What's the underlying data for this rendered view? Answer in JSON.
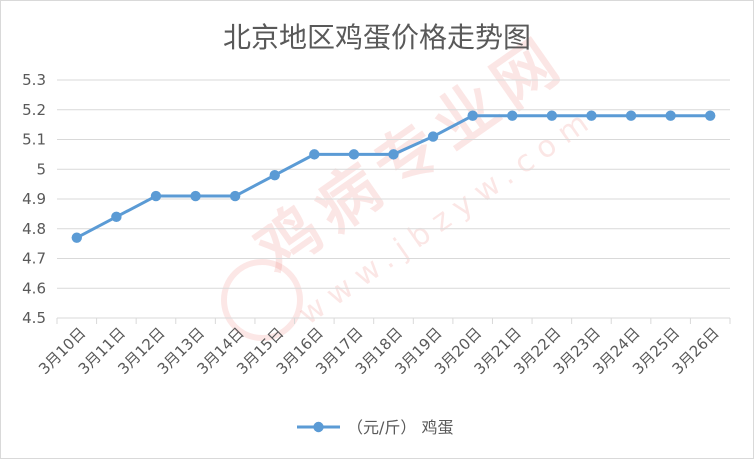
{
  "chart_data": {
    "type": "line",
    "title": "北京地区鸡蛋价格走势图",
    "categories": [
      "3月10日",
      "3月11日",
      "3月12日",
      "3月13日",
      "3月14日",
      "3月15日",
      "3月16日",
      "3月17日",
      "3月18日",
      "3月19日",
      "3月20日",
      "3月21日",
      "3月22日",
      "3月23日",
      "3月24日",
      "3月25日",
      "3月26日"
    ],
    "series": [
      {
        "name": "（元/斤） 鸡蛋",
        "color": "#5B9BD5",
        "values": [
          4.77,
          4.84,
          4.91,
          4.91,
          4.91,
          4.98,
          5.05,
          5.05,
          5.05,
          5.11,
          5.18,
          5.18,
          5.18,
          5.18,
          5.18,
          5.18,
          5.18
        ]
      }
    ],
    "ylim": [
      4.5,
      5.3
    ],
    "yticks": [
      4.5,
      4.6,
      4.7,
      4.8,
      4.9,
      5,
      5.1,
      5.2,
      5.3
    ],
    "ytick_labels": [
      "4.5",
      "4.6",
      "4.7",
      "4.8",
      "4.9",
      "5",
      "5.1",
      "5.2",
      "5.3"
    ],
    "grid": true,
    "legend": "bottom"
  },
  "watermark": {
    "brand": "鸡病专业网",
    "url": "www.jbzyw.com",
    "color": "#E8453C"
  }
}
